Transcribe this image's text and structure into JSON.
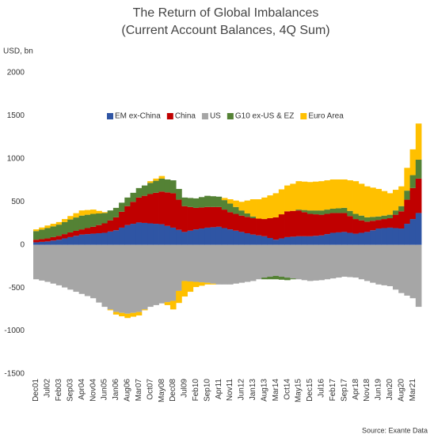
{
  "chart_data": {
    "type": "stacked_bar",
    "title": "The Return of Global Imbalances",
    "subtitle": "(Current Account Balances, 4Q Sum)",
    "y_label": "USD, bn",
    "source": "Source: Exante Data",
    "categories": [
      "Dec01",
      null,
      "Jul02",
      null,
      "Feb03",
      null,
      "Sep03",
      null,
      "Apr04",
      null,
      "Nov04",
      null,
      "Jun05",
      null,
      "Jan06",
      null,
      "Aug06",
      null,
      "Mar07",
      null,
      "Oct07",
      null,
      "May08",
      null,
      "Dec08",
      null,
      "Jul09",
      null,
      "Feb10",
      null,
      "Sep10",
      null,
      "Apr11",
      null,
      "Nov11",
      null,
      "Jun12",
      null,
      "Jan13",
      null,
      "Aug13",
      null,
      "Mar14",
      null,
      "Oct14",
      null,
      "May15",
      null,
      "Dec15",
      null,
      "Jul16",
      null,
      "Feb17",
      null,
      "Sep17",
      null,
      "Apr18",
      null,
      "Nov18",
      null,
      "Jun19",
      null,
      "Jan20",
      null,
      "Aug20",
      null,
      "Mar21",
      null
    ],
    "series": [
      {
        "name": "EM ex-China",
        "color": "#2f55a4",
        "values": [
          30,
          35,
          40,
          50,
          60,
          75,
          90,
          105,
          120,
          125,
          130,
          135,
          140,
          155,
          170,
          200,
          230,
          245,
          260,
          255,
          250,
          245,
          240,
          220,
          200,
          175,
          150,
          165,
          180,
          190,
          200,
          205,
          210,
          195,
          180,
          165,
          150,
          135,
          120,
          110,
          100,
          80,
          60,
          75,
          90,
          95,
          100,
          100,
          100,
          105,
          110,
          125,
          140,
          145,
          150,
          140,
          130,
          140,
          150,
          170,
          190,
          195,
          200,
          195,
          190,
          245,
          300,
          370
        ]
      },
      {
        "name": "China",
        "color": "#c00000",
        "values": [
          30,
          32,
          35,
          40,
          45,
          50,
          55,
          58,
          60,
          70,
          80,
          95,
          110,
          130,
          150,
          185,
          220,
          255,
          290,
          315,
          340,
          360,
          380,
          390,
          400,
          350,
          300,
          275,
          250,
          245,
          240,
          235,
          230,
          215,
          200,
          195,
          190,
          190,
          190,
          195,
          200,
          230,
          260,
          280,
          300,
          300,
          300,
          280,
          260,
          250,
          240,
          235,
          230,
          225,
          220,
          195,
          170,
          145,
          120,
          110,
          100,
          105,
          110,
          155,
          200,
          280,
          360,
          400
        ]
      },
      {
        "name": "US",
        "color": "#a6a6a6",
        "values": [
          -400,
          -415,
          -430,
          -450,
          -470,
          -495,
          -520,
          -545,
          -570,
          -595,
          -620,
          -670,
          -720,
          -750,
          -780,
          -790,
          -800,
          -790,
          -780,
          -750,
          -720,
          -700,
          -680,
          -665,
          -650,
          -535,
          -420,
          -425,
          -430,
          -435,
          -440,
          -450,
          -460,
          -460,
          -460,
          -450,
          -440,
          -430,
          -420,
          -400,
          -380,
          -370,
          -360,
          -370,
          -380,
          -390,
          -400,
          -410,
          -420,
          -415,
          -410,
          -400,
          -390,
          -380,
          -370,
          -375,
          -380,
          -400,
          -420,
          -440,
          -460,
          -470,
          -480,
          -520,
          -560,
          -590,
          -620,
          -720
        ]
      },
      {
        "name": "G10 ex-US & EZ",
        "color": "#548235",
        "values": [
          100,
          110,
          120,
          125,
          130,
          140,
          150,
          155,
          160,
          155,
          150,
          135,
          120,
          115,
          110,
          105,
          100,
          105,
          110,
          120,
          130,
          140,
          150,
          150,
          150,
          125,
          100,
          105,
          110,
          120,
          130,
          125,
          120,
          110,
          100,
          80,
          60,
          40,
          20,
          0,
          -20,
          -30,
          -40,
          -35,
          -30,
          -10,
          10,
          25,
          40,
          45,
          50,
          50,
          50,
          55,
          60,
          60,
          60,
          55,
          50,
          45,
          40,
          40,
          40,
          50,
          60,
          105,
          150,
          220
        ]
      },
      {
        "name": "Euro Area",
        "color": "#ffc000",
        "values": [
          20,
          25,
          30,
          30,
          30,
          35,
          40,
          50,
          60,
          55,
          50,
          30,
          10,
          -10,
          -30,
          -40,
          -50,
          -45,
          -40,
          -10,
          20,
          25,
          30,
          -35,
          -100,
          -140,
          -180,
          -120,
          -60,
          -40,
          -20,
          -10,
          0,
          25,
          50,
          75,
          100,
          150,
          200,
          225,
          250,
          265,
          280,
          290,
          300,
          315,
          330,
          330,
          330,
          335,
          340,
          340,
          340,
          335,
          330,
          355,
          380,
          370,
          360,
          340,
          320,
          285,
          250,
          240,
          230,
          265,
          300,
          420
        ]
      }
    ],
    "ylim": [
      -1500,
      2000
    ],
    "yticks": [
      -1500,
      -1000,
      -500,
      0,
      500,
      1000,
      1500,
      2000
    ],
    "grid": false,
    "legend": "top"
  }
}
